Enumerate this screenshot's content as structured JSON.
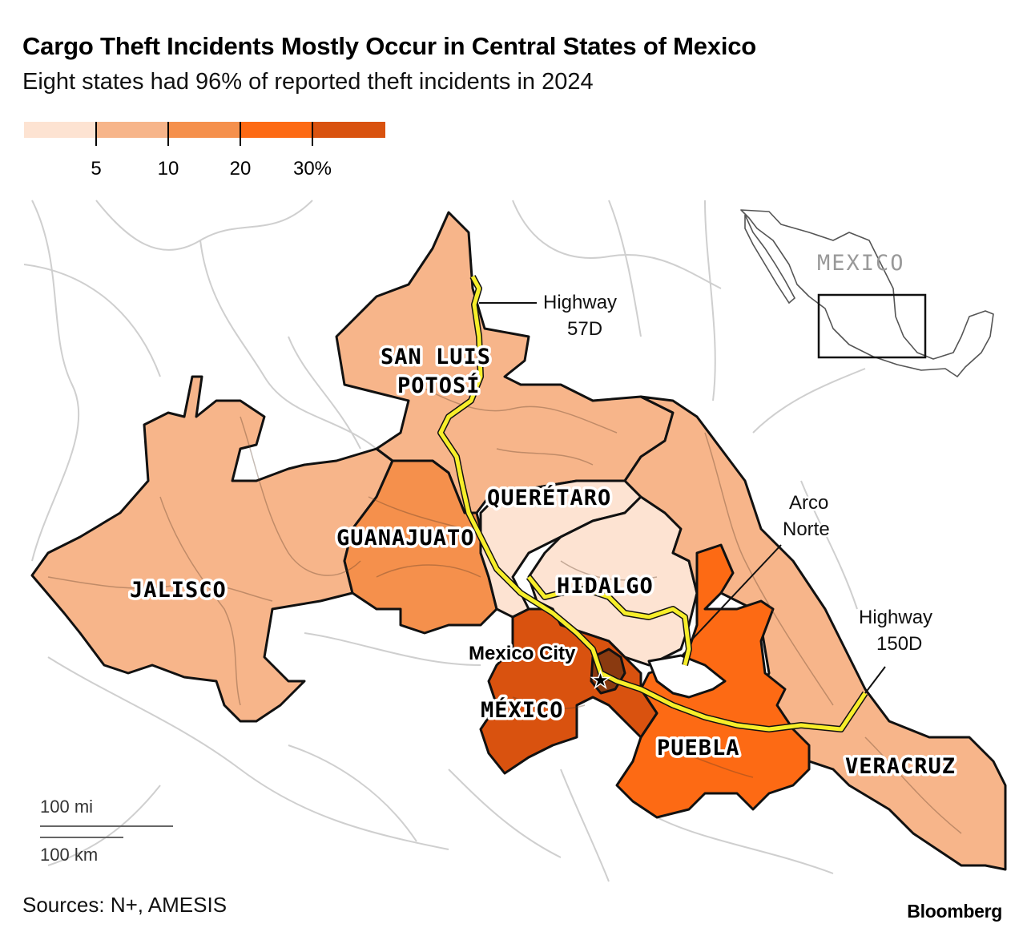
{
  "title": "Cargo Theft Incidents Mostly Occur in Central States of Mexico",
  "subtitle": "Eight states had 96% of reported theft incidents in 2024",
  "legend": {
    "labels": [
      "5",
      "10",
      "20",
      "30%"
    ],
    "colors": [
      "#fde3d2",
      "#f7b58a",
      "#f5904c",
      "#fd6a14",
      "#d9520f"
    ]
  },
  "states": [
    {
      "name": "SAN LUIS POTOSÍ",
      "lines": [
        "SAN LUIS",
        "POTOSÍ"
      ],
      "bin": "5-10",
      "color": "#f7b58a"
    },
    {
      "name": "QUERÉTARO",
      "lines": [
        "QUERÉTARO"
      ],
      "bin": "<5",
      "color": "#fde3d2"
    },
    {
      "name": "GUANAJUATO",
      "lines": [
        "GUANAJUATO"
      ],
      "bin": "10-20",
      "color": "#f5904c"
    },
    {
      "name": "JALISCO",
      "lines": [
        "JALISCO"
      ],
      "bin": "5-10",
      "color": "#f7b58a"
    },
    {
      "name": "HIDALGO",
      "lines": [
        "HIDALGO"
      ],
      "bin": "<5",
      "color": "#fde3d2"
    },
    {
      "name": "MÉXICO",
      "lines": [
        "MÉXICO"
      ],
      "bin": "30+",
      "color": "#d9520f"
    },
    {
      "name": "PUEBLA",
      "lines": [
        "PUEBLA"
      ],
      "bin": "20-30",
      "color": "#fd6a14"
    },
    {
      "name": "VERACRUZ",
      "lines": [
        "VERACRUZ"
      ],
      "bin": "5-10",
      "color": "#f7b58a"
    }
  ],
  "annotations": {
    "highway_57d": [
      "Highway",
      "57D"
    ],
    "arco_norte": [
      "Arco",
      "Norte"
    ],
    "highway_150d": [
      "Highway",
      "150D"
    ],
    "city": "Mexico City",
    "inset_label": "MEXICO"
  },
  "scale": {
    "miles": "100 mi",
    "km": "100 km"
  },
  "source": "Sources: N+, AMESIS",
  "brand": "Bloomberg"
}
